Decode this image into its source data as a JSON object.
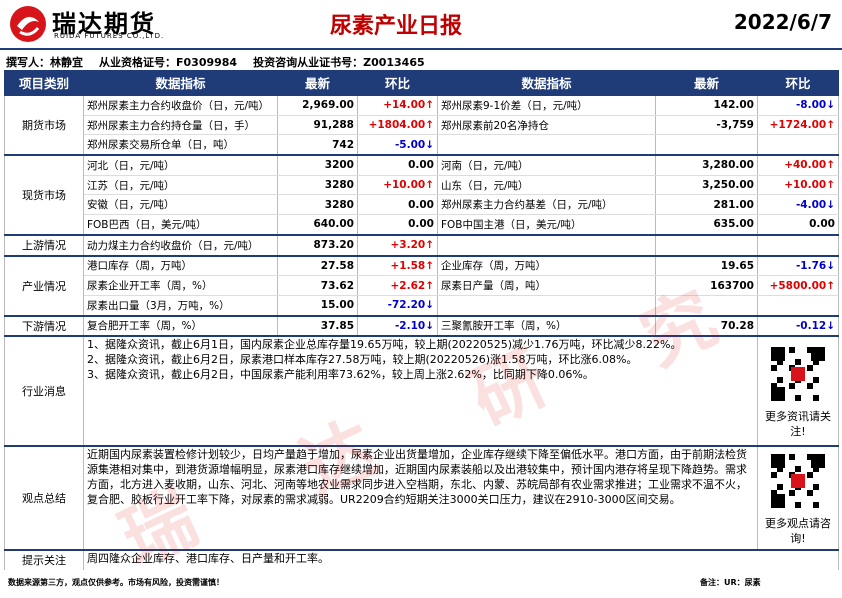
{
  "header": {
    "company": "瑞达期货",
    "company_en": "RUIDA FUTURES CO.,LTD.",
    "title": "尿素产业日报",
    "date": "2022/6/7"
  },
  "author": {
    "writer": "撰写人：林静宜",
    "qualification": "从业资格证号：F0309984",
    "consult": "投资咨询从业证书号：Z0013465"
  },
  "table": {
    "columns": [
      "项目类别",
      "数据指标",
      "最新",
      "环比",
      "数据指标",
      "最新",
      "环比"
    ],
    "sections": [
      {
        "category": "期货市场",
        "rows": [
          [
            "郑州尿素主力合约收盘价（日，元/吨）",
            "2,969.00",
            "+14.00↑",
            "郑州尿素9-1价差（日，元/吨）",
            "142.00",
            "-8.00↓"
          ],
          [
            "郑州尿素主力合约持仓量（日，手）",
            "91,288",
            "+1804.00↑",
            "郑州尿素前20名净持仓",
            "-3,759",
            "+1724.00↑"
          ],
          [
            "郑州尿素交易所仓单（日，吨）",
            "742",
            "-5.00↓"
          ]
        ]
      },
      {
        "category": "现货市场",
        "rows": [
          [
            "河北（日，元/吨）",
            "3200",
            "0.00",
            "河南（日，元/吨）",
            "3,280.00",
            "+40.00↑"
          ],
          [
            "江苏（日，元/吨）",
            "3280",
            "+10.00↑",
            "山东（日，元/吨）",
            "3,250.00",
            "+10.00↑"
          ],
          [
            "安徽（日，元/吨）",
            "3280",
            "0.00",
            "郑州尿素主力合约基差（日，元/吨）",
            "281.00",
            "-4.00↓"
          ],
          [
            "FOB巴西（日，美元/吨）",
            "640.00",
            "0.00",
            "FOB中国主港（日，美元/吨）",
            "635.00",
            "0.00"
          ]
        ]
      },
      {
        "category": "上游情况",
        "rows": [
          [
            "动力煤主力合约收盘价（日，元/吨）",
            "873.20",
            "+3.20↑"
          ]
        ]
      },
      {
        "category": "产业情况",
        "rows": [
          [
            "港口库存（周，万吨）",
            "27.58",
            "+1.58↑",
            "企业库存（周，万吨）",
            "19.65",
            "-1.76↓"
          ],
          [
            "尿素企业开工率（周，%）",
            "73.62",
            "+2.62↑",
            "尿素日产量（周，吨）",
            "163700",
            "+5800.00↑"
          ],
          [
            "尿素出口量（3月，万吨，%）",
            "15.00",
            "-72.20↓"
          ]
        ]
      },
      {
        "category": "下游情况",
        "rows": [
          [
            "复合肥开工率（周，%）",
            "37.85",
            "-2.10↓",
            "三聚氰胺开工率（周，%）",
            "70.28",
            "-0.12↓"
          ]
        ]
      }
    ]
  },
  "news": {
    "label": "行业消息",
    "items": [
      "1、据隆众资讯，截止6月1日，国内尿素企业总库存量19.65万吨，较上期(20220525)减少1.76万吨，环比减少8.22%。",
      "2、据隆众资讯，截止6月2日，尿素港口样本库存27.58万吨，较上期(20220526)涨1.58万吨，环比涨6.08%。",
      "3、据隆众资讯，截止6月2日，中国尿素产能利用率73.62%，较上周上涨2.62%，比同期下降0.06%。"
    ],
    "qr_caption": "更多资讯请关注!"
  },
  "view": {
    "label": "观点总结",
    "text": "近期国内尿素装置检修计划较少，日均产量趋于增加，尿素企业出货量增加，企业库存继续下降至偏低水平。港口方面，由于前期法检货源集港相对集中，到港货源增幅明显，尿素港口库存继续增加，近期国内尿素装船以及出港较集中，预计国内港存将呈现下降趋势。需求方面，北方进入麦收期，山东、河北、河南等地农业需求同步进入空档期，东北、内蒙、苏皖局部有农业需求推进；工业需求不温不火，复合肥、胶板行业开工率下降，对尿素的需求减弱。UR2209合约短期关注3000关口压力，建议在2910-3000区间交易。",
    "qr_caption": "更多观点请咨询!"
  },
  "focus": {
    "label": "提示关注",
    "text": "周四隆众企业库存、港口库存、日产量和开工率。"
  },
  "footer": {
    "disclaimer": "数据来源第三方，观点仅供参考。市场有风险，投资需谨慎！",
    "note": "备注：UR：尿素"
  },
  "watermark": [
    "瑞",
    "达",
    "研",
    "究"
  ]
}
